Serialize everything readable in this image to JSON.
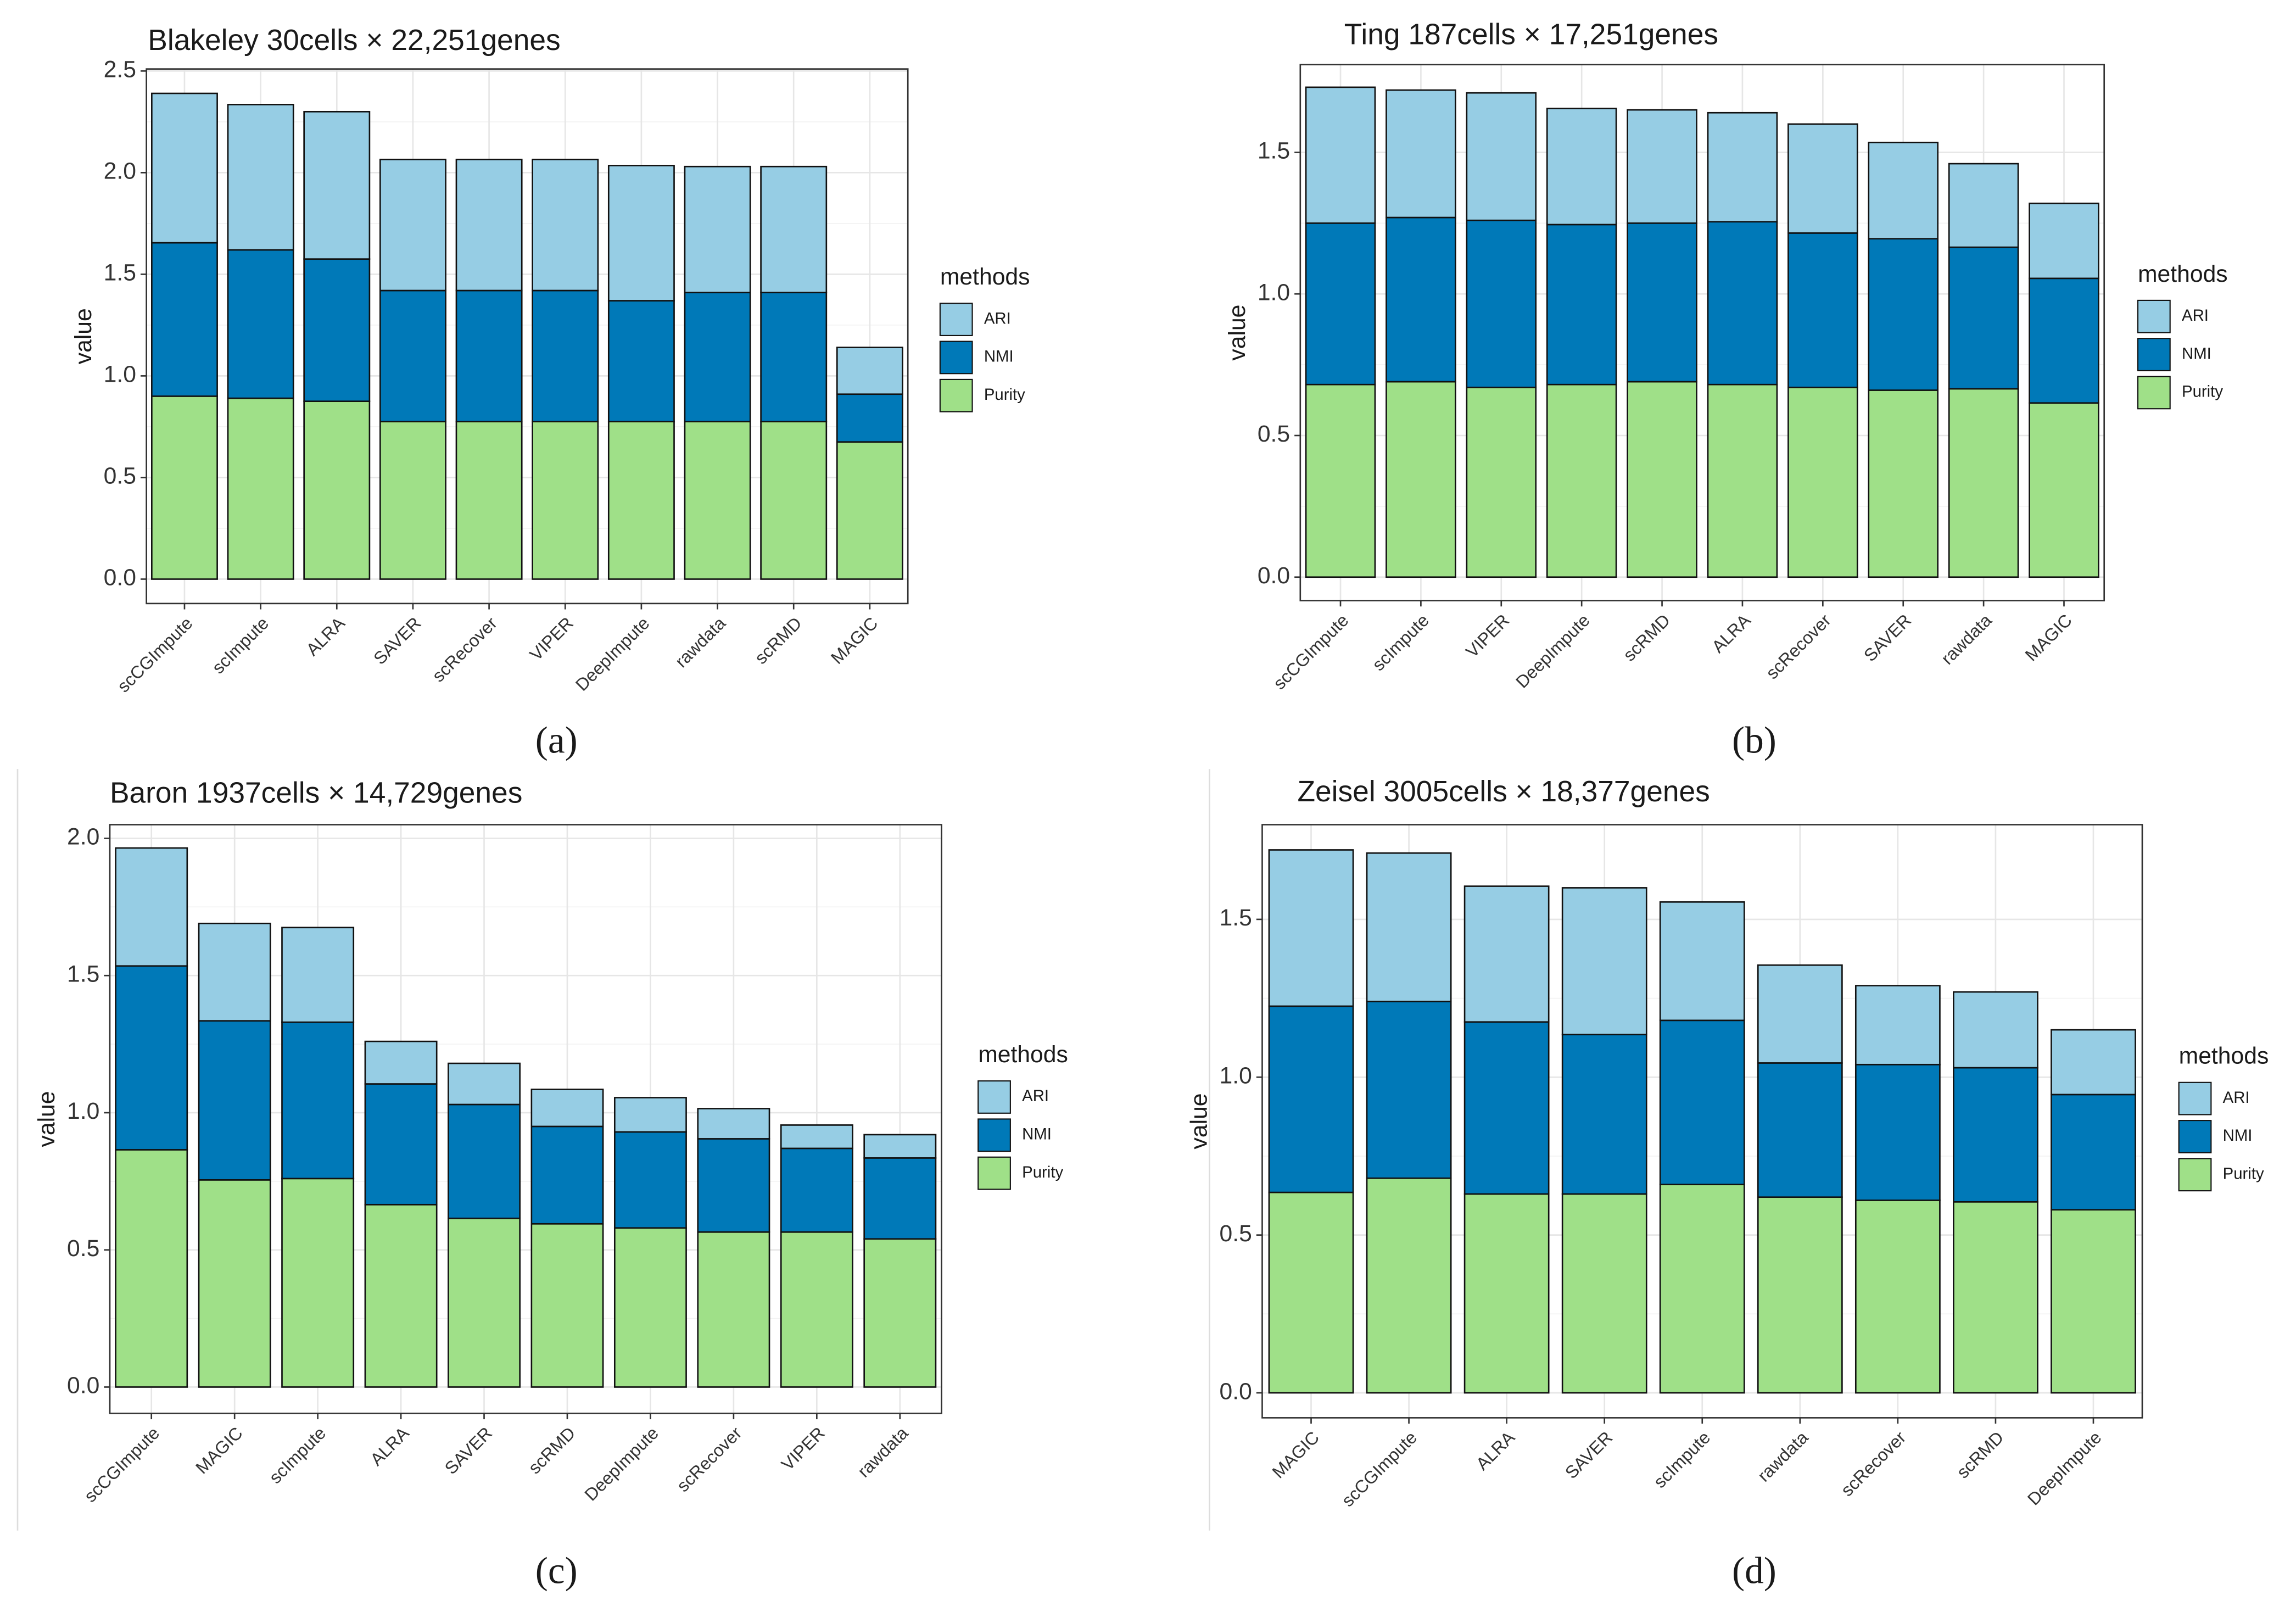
{
  "chart_data": [
    {
      "type": "stacked_bar",
      "title": "Blakeley  30cells × 22,251genes",
      "caption": "(a)",
      "y_label": "value",
      "legend_title": "methods",
      "grid": true,
      "categories": [
        "scCGImpute",
        "scImpute",
        "ALRA",
        "SAVER",
        "scRecover",
        "VIPER",
        "DeepImpute",
        "rawdata",
        "scRMD",
        "MAGIC"
      ],
      "series": [
        {
          "name": "Purity",
          "color": "#9fe088",
          "values": [
            0.9,
            0.89,
            0.875,
            0.775,
            0.775,
            0.775,
            0.775,
            0.775,
            0.775,
            0.675
          ]
        },
        {
          "name": "NMI",
          "color": "#0079b8",
          "values": [
            0.755,
            0.73,
            0.7,
            0.645,
            0.645,
            0.645,
            0.595,
            0.635,
            0.635,
            0.235
          ]
        },
        {
          "name": "ARI",
          "color": "#96cde4",
          "values": [
            0.735,
            0.715,
            0.725,
            0.645,
            0.645,
            0.645,
            0.665,
            0.62,
            0.62,
            0.23
          ]
        }
      ],
      "ylim": [
        -0.12,
        2.51
      ],
      "yticks": [
        {
          "value": 0,
          "label": "0.0"
        },
        0.5,
        {
          "value": 1,
          "label": "1.0"
        },
        1.5,
        {
          "value": 2,
          "label": "2.0"
        },
        2.5
      ]
    },
    {
      "type": "stacked_bar",
      "title": "Ting  187cells × 17,251genes",
      "caption": "(b)",
      "y_label": "value",
      "legend_title": "methods",
      "grid": true,
      "categories": [
        "scCGImpute",
        "scImpute",
        "VIPER",
        "DeepImpute",
        "scRMD",
        "ALRA",
        "scRecover",
        "SAVER",
        "rawdata",
        "MAGIC"
      ],
      "series": [
        {
          "name": "Purity",
          "color": "#9fe088",
          "values": [
            0.68,
            0.69,
            0.67,
            0.68,
            0.69,
            0.68,
            0.67,
            0.66,
            0.665,
            0.615
          ]
        },
        {
          "name": "NMI",
          "color": "#0079b8",
          "values": [
            0.57,
            0.58,
            0.59,
            0.565,
            0.56,
            0.575,
            0.545,
            0.535,
            0.5,
            0.44
          ]
        },
        {
          "name": "ARI",
          "color": "#96cde4",
          "values": [
            0.48,
            0.45,
            0.45,
            0.41,
            0.4,
            0.385,
            0.385,
            0.34,
            0.295,
            0.265
          ]
        }
      ],
      "ylim": [
        -0.083,
        1.81
      ],
      "yticks": [
        {
          "value": 0,
          "label": "0.0"
        },
        0.5,
        {
          "value": 1,
          "label": "1.0"
        },
        1.5
      ]
    },
    {
      "type": "stacked_bar",
      "title": "Baron 1937cells × 14,729genes",
      "caption": "(c)",
      "y_label": "value",
      "legend_title": "methods",
      "grid": true,
      "categories": [
        "scCGImpute",
        "MAGIC",
        "scImpute",
        "ALRA",
        "SAVER",
        "scRMD",
        "DeepImpute",
        "scRecover",
        "VIPER",
        "rawdata"
      ],
      "series": [
        {
          "name": "Purity",
          "color": "#9fe088",
          "values": [
            0.865,
            0.755,
            0.76,
            0.665,
            0.615,
            0.595,
            0.58,
            0.565,
            0.565,
            0.54
          ]
        },
        {
          "name": "NMI",
          "color": "#0079b8",
          "values": [
            0.67,
            0.58,
            0.57,
            0.44,
            0.415,
            0.355,
            0.35,
            0.34,
            0.305,
            0.295
          ]
        },
        {
          "name": "ARI",
          "color": "#96cde4",
          "values": [
            0.43,
            0.355,
            0.345,
            0.155,
            0.15,
            0.135,
            0.125,
            0.11,
            0.085,
            0.085
          ]
        }
      ],
      "ylim": [
        -0.096,
        2.05
      ],
      "yticks": [
        {
          "value": 0,
          "label": "0.0"
        },
        0.5,
        {
          "value": 1,
          "label": "1.0"
        },
        1.5,
        {
          "value": 2,
          "label": "2.0"
        }
      ]
    },
    {
      "type": "stacked_bar",
      "title": "Zeisel  3005cells × 18,377genes",
      "caption": "(d)",
      "y_label": "value",
      "legend_title": "methods",
      "grid": true,
      "categories": [
        "MAGIC",
        "scCGImpute",
        "ALRA",
        "SAVER",
        "scImpute",
        "rawdata",
        "scRecover",
        "scRMD",
        "DeepImpute"
      ],
      "series": [
        {
          "name": "Purity",
          "color": "#9fe088",
          "values": [
            0.635,
            0.68,
            0.63,
            0.63,
            0.66,
            0.62,
            0.61,
            0.605,
            0.58
          ]
        },
        {
          "name": "NMI",
          "color": "#0079b8",
          "values": [
            0.59,
            0.56,
            0.545,
            0.505,
            0.52,
            0.425,
            0.43,
            0.425,
            0.365
          ]
        },
        {
          "name": "ARI",
          "color": "#96cde4",
          "values": [
            0.495,
            0.47,
            0.43,
            0.465,
            0.375,
            0.31,
            0.25,
            0.24,
            0.205
          ]
        }
      ],
      "ylim": [
        -0.079,
        1.8
      ],
      "yticks": [
        {
          "value": 0,
          "label": "0.0"
        },
        0.5,
        {
          "value": 1,
          "label": "1.0"
        },
        1.5
      ]
    }
  ]
}
